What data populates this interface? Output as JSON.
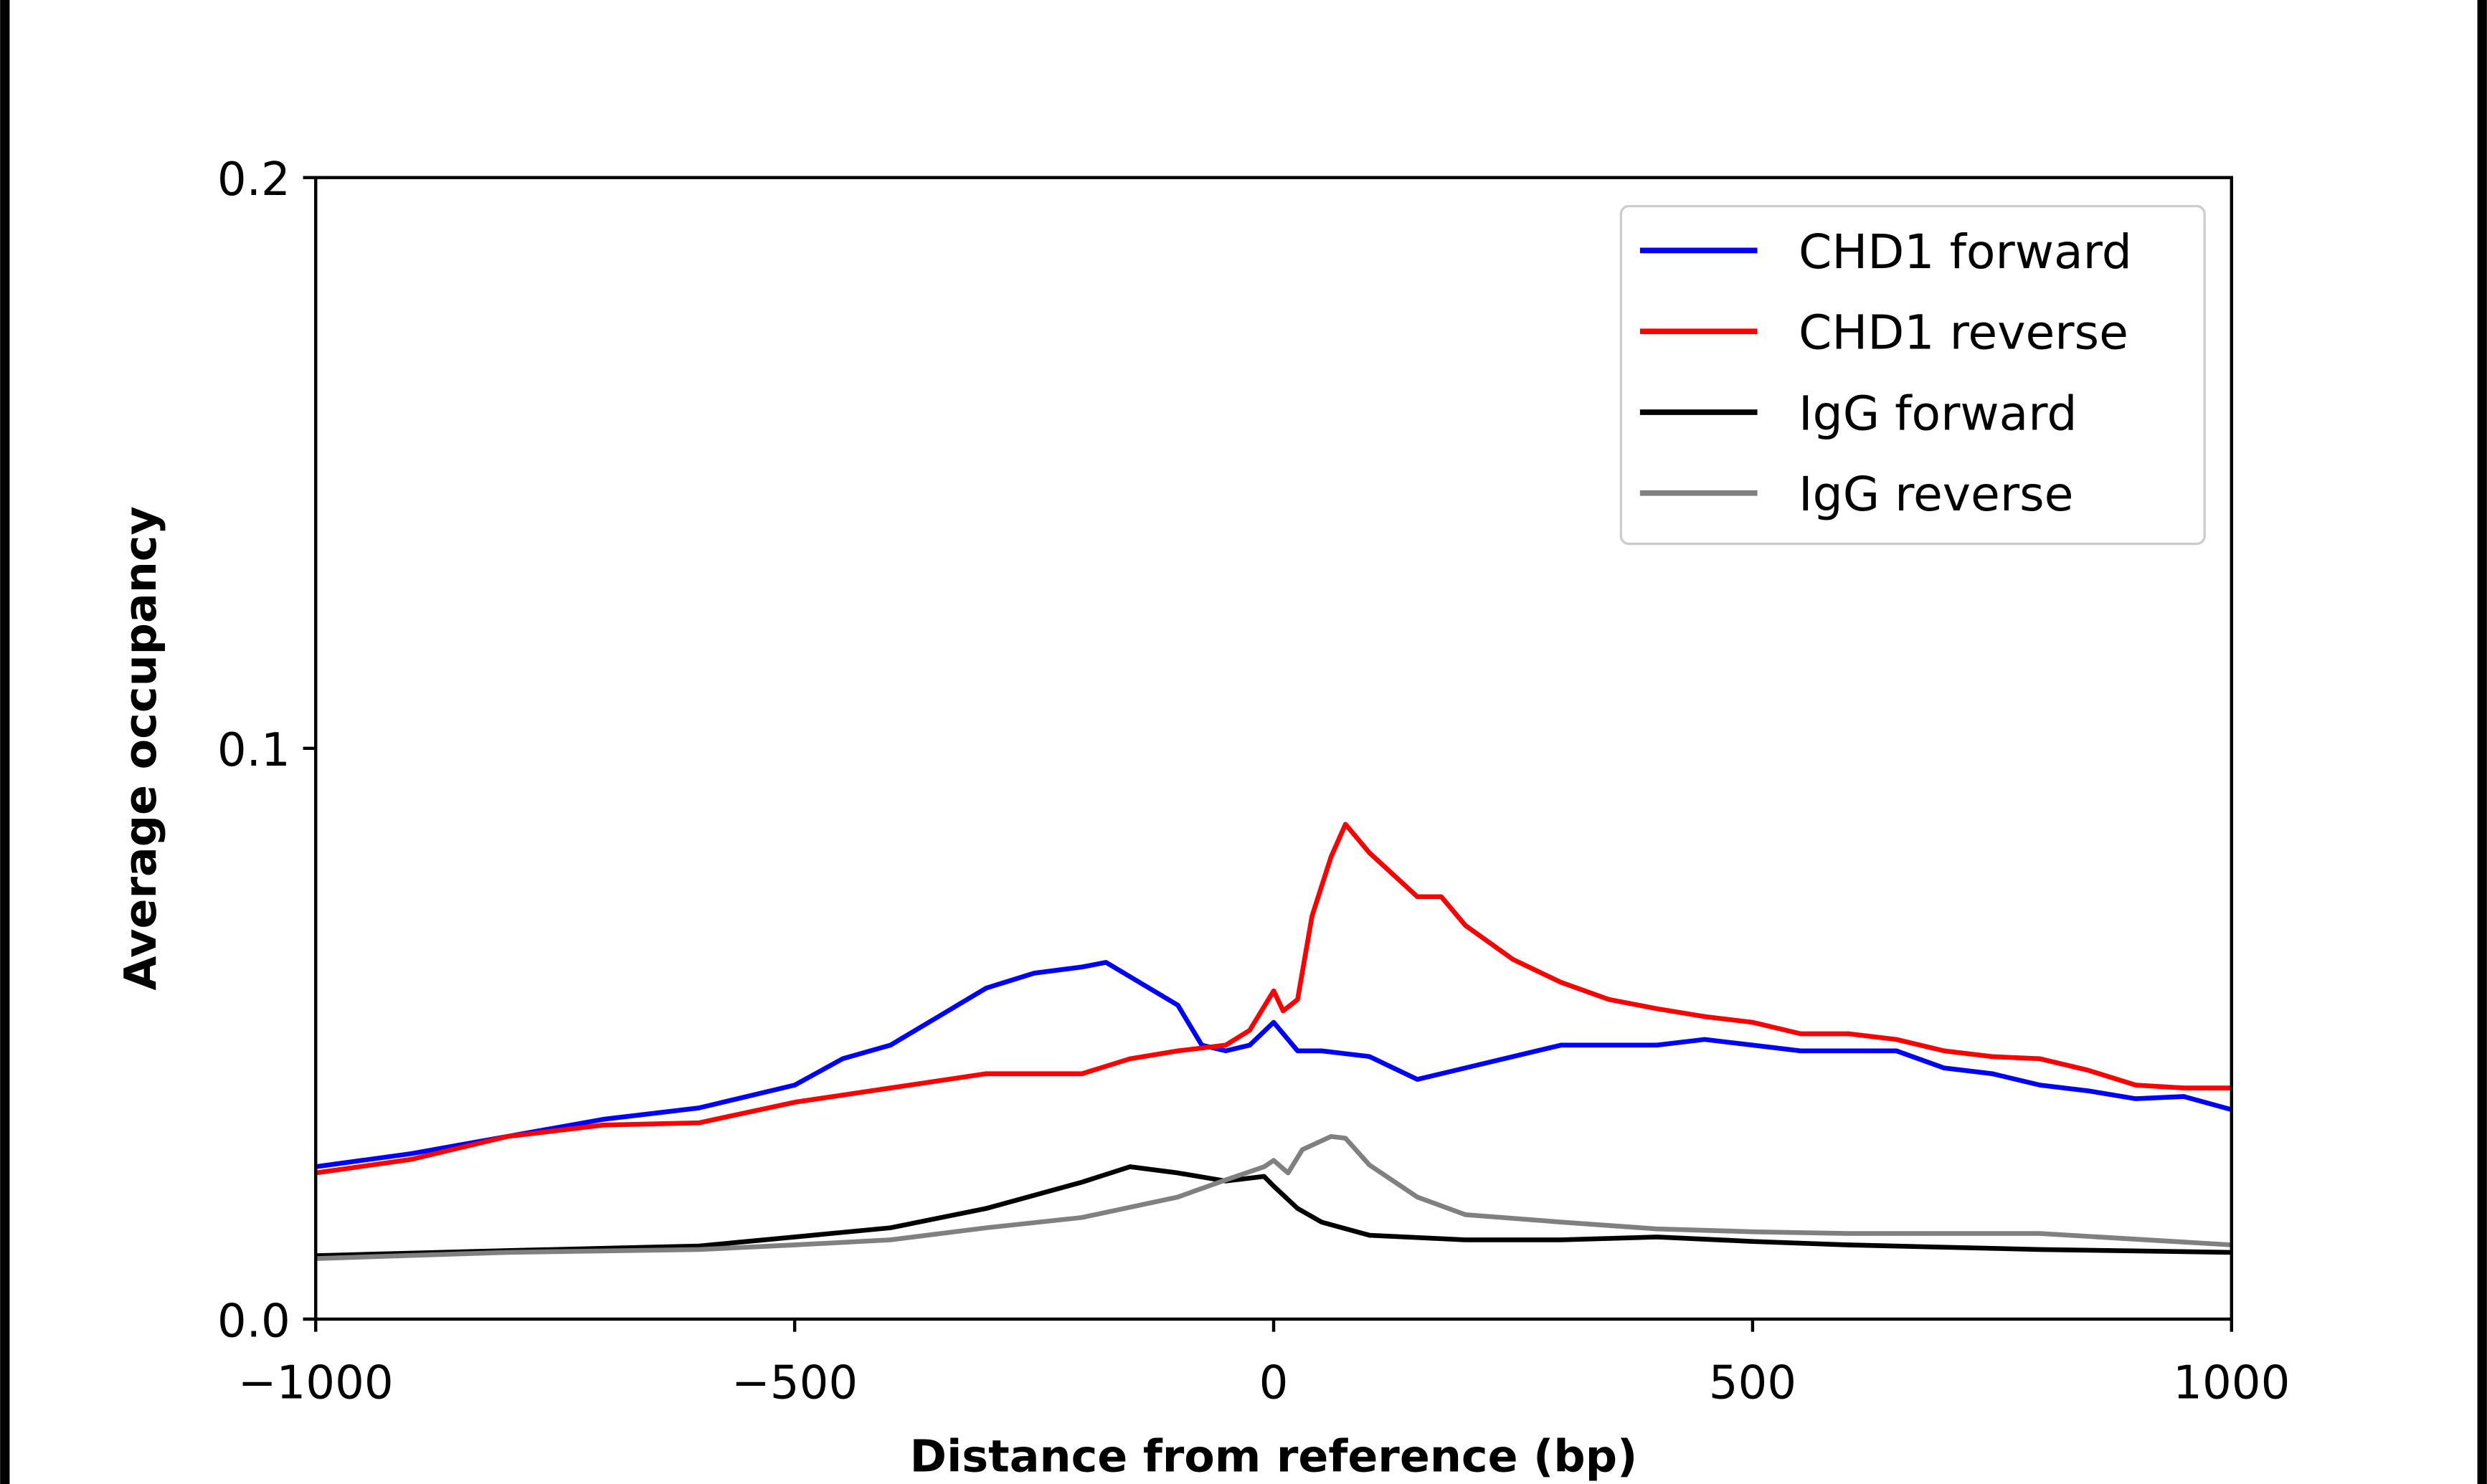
{
  "chart_data": {
    "type": "line",
    "title": "",
    "xlabel": "Distance from reference (bp)",
    "ylabel": "Average occupancy",
    "xlim": [
      -1000,
      1000
    ],
    "ylim": [
      0.0,
      0.2
    ],
    "xticks": [
      -1000,
      -500,
      0,
      500,
      1000
    ],
    "xtick_labels": [
      "−1000",
      "−500",
      "0",
      "500",
      "1000"
    ],
    "yticks": [
      0.0,
      0.1,
      0.2
    ],
    "ytick_labels": [
      "0.0",
      "0.1",
      "0.2"
    ],
    "grid": false,
    "legend_position": "top-right",
    "series": [
      {
        "name": "CHD1 forward",
        "color": "#0000ff",
        "x": [
          -1000,
          -900,
          -800,
          -700,
          -600,
          -500,
          -450,
          -400,
          -350,
          -300,
          -250,
          -200,
          -175,
          -150,
          -100,
          -75,
          -50,
          -25,
          0,
          25,
          50,
          100,
          150,
          200,
          250,
          300,
          350,
          400,
          450,
          500,
          550,
          600,
          650,
          700,
          750,
          800,
          850,
          900,
          950,
          1000
        ],
        "y": [
          0.0267,
          0.029,
          0.032,
          0.035,
          0.037,
          0.041,
          0.0456,
          0.048,
          0.053,
          0.058,
          0.0606,
          0.0617,
          0.0625,
          0.06,
          0.055,
          0.048,
          0.047,
          0.048,
          0.052,
          0.047,
          0.047,
          0.046,
          0.042,
          0.044,
          0.046,
          0.048,
          0.048,
          0.048,
          0.049,
          0.048,
          0.047,
          0.047,
          0.047,
          0.044,
          0.043,
          0.041,
          0.04,
          0.0386,
          0.039,
          0.0367
        ]
      },
      {
        "name": "CHD1 reverse",
        "color": "#ff0000",
        "x": [
          -1000,
          -900,
          -800,
          -700,
          -600,
          -500,
          -400,
          -300,
          -250,
          -200,
          -150,
          -100,
          -50,
          -25,
          0,
          10,
          25,
          40,
          60,
          75,
          100,
          150,
          175,
          200,
          250,
          300,
          350,
          400,
          450,
          500,
          550,
          600,
          650,
          700,
          750,
          800,
          850,
          900,
          950,
          1000
        ],
        "y": [
          0.0256,
          0.028,
          0.032,
          0.034,
          0.0344,
          0.038,
          0.0405,
          0.043,
          0.043,
          0.043,
          0.0456,
          0.047,
          0.048,
          0.0506,
          0.0575,
          0.054,
          0.056,
          0.0706,
          0.081,
          0.0867,
          0.0817,
          0.074,
          0.074,
          0.069,
          0.063,
          0.059,
          0.056,
          0.0544,
          0.053,
          0.052,
          0.05,
          0.05,
          0.049,
          0.047,
          0.046,
          0.0456,
          0.0436,
          0.041,
          0.0405,
          0.0405
        ]
      },
      {
        "name": "IgG forward",
        "color": "#000000",
        "x": [
          -1000,
          -800,
          -600,
          -500,
          -400,
          -300,
          -200,
          -150,
          -100,
          -50,
          -10,
          0,
          25,
          50,
          100,
          200,
          300,
          400,
          500,
          600,
          800,
          1000
        ],
        "y": [
          0.0111,
          0.012,
          0.0128,
          0.0144,
          0.016,
          0.0194,
          0.024,
          0.0267,
          0.0256,
          0.0242,
          0.025,
          0.0233,
          0.0194,
          0.017,
          0.0147,
          0.0139,
          0.0139,
          0.0144,
          0.0136,
          0.013,
          0.0122,
          0.0117
        ]
      },
      {
        "name": "IgG reverse",
        "color": "#808080",
        "x": [
          -1000,
          -800,
          -600,
          -500,
          -400,
          -300,
          -200,
          -100,
          -50,
          -10,
          0,
          15,
          30,
          60,
          75,
          100,
          150,
          200,
          300,
          400,
          500,
          600,
          800,
          1000
        ],
        "y": [
          0.0106,
          0.0117,
          0.0122,
          0.013,
          0.0139,
          0.016,
          0.0178,
          0.0214,
          0.0244,
          0.0267,
          0.0278,
          0.0256,
          0.0297,
          0.032,
          0.0317,
          0.027,
          0.0214,
          0.0183,
          0.017,
          0.0158,
          0.0153,
          0.015,
          0.015,
          0.013
        ]
      }
    ]
  }
}
